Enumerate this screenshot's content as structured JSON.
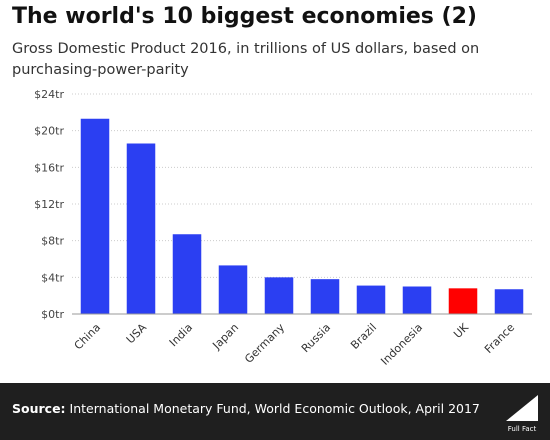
{
  "header": {
    "title": "The world's 10 biggest economies (2)",
    "subtitle": "Gross Domestic Product 2016, in trillions of US dollars, based on purchasing-power-parity"
  },
  "footer": {
    "source_label": "Source:",
    "source_text": "International Monetary Fund, World Economic Outlook, April 2017",
    "logo_text": "Full Fact",
    "logo_icon": "full-fact-logo"
  },
  "colors": {
    "bar": "#2b3ff2",
    "highlight": "#ff0000",
    "footer": "#1f1f1f",
    "grid": "#cccccc"
  },
  "chart_data": {
    "type": "bar",
    "title": "",
    "xlabel": "",
    "ylabel": "",
    "categories": [
      "China",
      "USA",
      "India",
      "Japan",
      "Germany",
      "Russia",
      "Brazil",
      "Indonesia",
      "UK",
      "France"
    ],
    "values": [
      21.3,
      18.6,
      8.7,
      5.3,
      4.0,
      3.8,
      3.1,
      3.0,
      2.8,
      2.7
    ],
    "highlight": [
      "UK"
    ],
    "ylim": [
      0,
      24
    ],
    "yticks": [
      0,
      4,
      8,
      12,
      16,
      20,
      24
    ],
    "ytick_labels": [
      "$0tr",
      "$4tr",
      "$8tr",
      "$12tr",
      "$16tr",
      "$20tr",
      "$24tr"
    ],
    "grid": true,
    "legend": "none"
  }
}
